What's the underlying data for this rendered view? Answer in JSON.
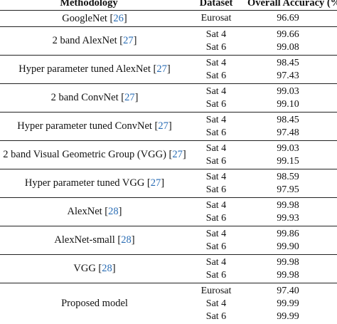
{
  "header": {
    "methodology": "Methodology",
    "dataset": "Dataset",
    "accuracy": "Overall Accuracy (%)"
  },
  "rows": [
    {
      "method": "GoogleNet [",
      "ref": "26",
      "close": "]",
      "entries": [
        {
          "dataset": "Eurosat",
          "accuracy": "96.69"
        }
      ]
    },
    {
      "method": "2 band AlexNet [",
      "ref": "27",
      "close": "]",
      "entries": [
        {
          "dataset": "Sat 4",
          "accuracy": "99.66"
        },
        {
          "dataset": "Sat 6",
          "accuracy": "99.08"
        }
      ]
    },
    {
      "method": "Hyper parameter tuned AlexNet [",
      "ref": "27",
      "close": "]",
      "entries": [
        {
          "dataset": "Sat 4",
          "accuracy": "98.45"
        },
        {
          "dataset": "Sat 6",
          "accuracy": "97.43"
        }
      ]
    },
    {
      "method": "2 band ConvNet [",
      "ref": "27",
      "close": "]",
      "entries": [
        {
          "dataset": "Sat 4",
          "accuracy": "99.03"
        },
        {
          "dataset": "Sat 6",
          "accuracy": "99.10"
        }
      ]
    },
    {
      "method": "Hyper parameter tuned ConvNet [",
      "ref": "27",
      "close": "]",
      "entries": [
        {
          "dataset": "Sat 4",
          "accuracy": "98.45"
        },
        {
          "dataset": "Sat 6",
          "accuracy": "97.48"
        }
      ]
    },
    {
      "method": "2 band Visual Geometric Group (VGG) [",
      "ref": "27",
      "close": "]",
      "entries": [
        {
          "dataset": "Sat 4",
          "accuracy": "99.03"
        },
        {
          "dataset": "Sat 6",
          "accuracy": "99.15"
        }
      ]
    },
    {
      "method": "Hyper parameter tuned VGG [",
      "ref": "27",
      "close": "]",
      "entries": [
        {
          "dataset": "Sat 4",
          "accuracy": "98.59"
        },
        {
          "dataset": "Sat 6",
          "accuracy": "97.95"
        }
      ]
    },
    {
      "method": "AlexNet [",
      "ref": "28",
      "close": "]",
      "entries": [
        {
          "dataset": "Sat 4",
          "accuracy": "99.98"
        },
        {
          "dataset": "Sat 6",
          "accuracy": "99.93"
        }
      ]
    },
    {
      "method": "AlexNet-small [",
      "ref": "28",
      "close": "]",
      "entries": [
        {
          "dataset": "Sat 4",
          "accuracy": "99.86"
        },
        {
          "dataset": "Sat 6",
          "accuracy": "99.90"
        }
      ]
    },
    {
      "method": "VGG [",
      "ref": "28",
      "close": "]",
      "entries": [
        {
          "dataset": "Sat 4",
          "accuracy": "99.98"
        },
        {
          "dataset": "Sat 6",
          "accuracy": "99.98"
        }
      ]
    },
    {
      "method": "Proposed model",
      "ref": "",
      "close": "",
      "entries": [
        {
          "dataset": "Eurosat",
          "accuracy": "97.40"
        },
        {
          "dataset": "Sat 4",
          "accuracy": "99.99"
        },
        {
          "dataset": "Sat 6",
          "accuracy": "99.99"
        }
      ]
    }
  ]
}
